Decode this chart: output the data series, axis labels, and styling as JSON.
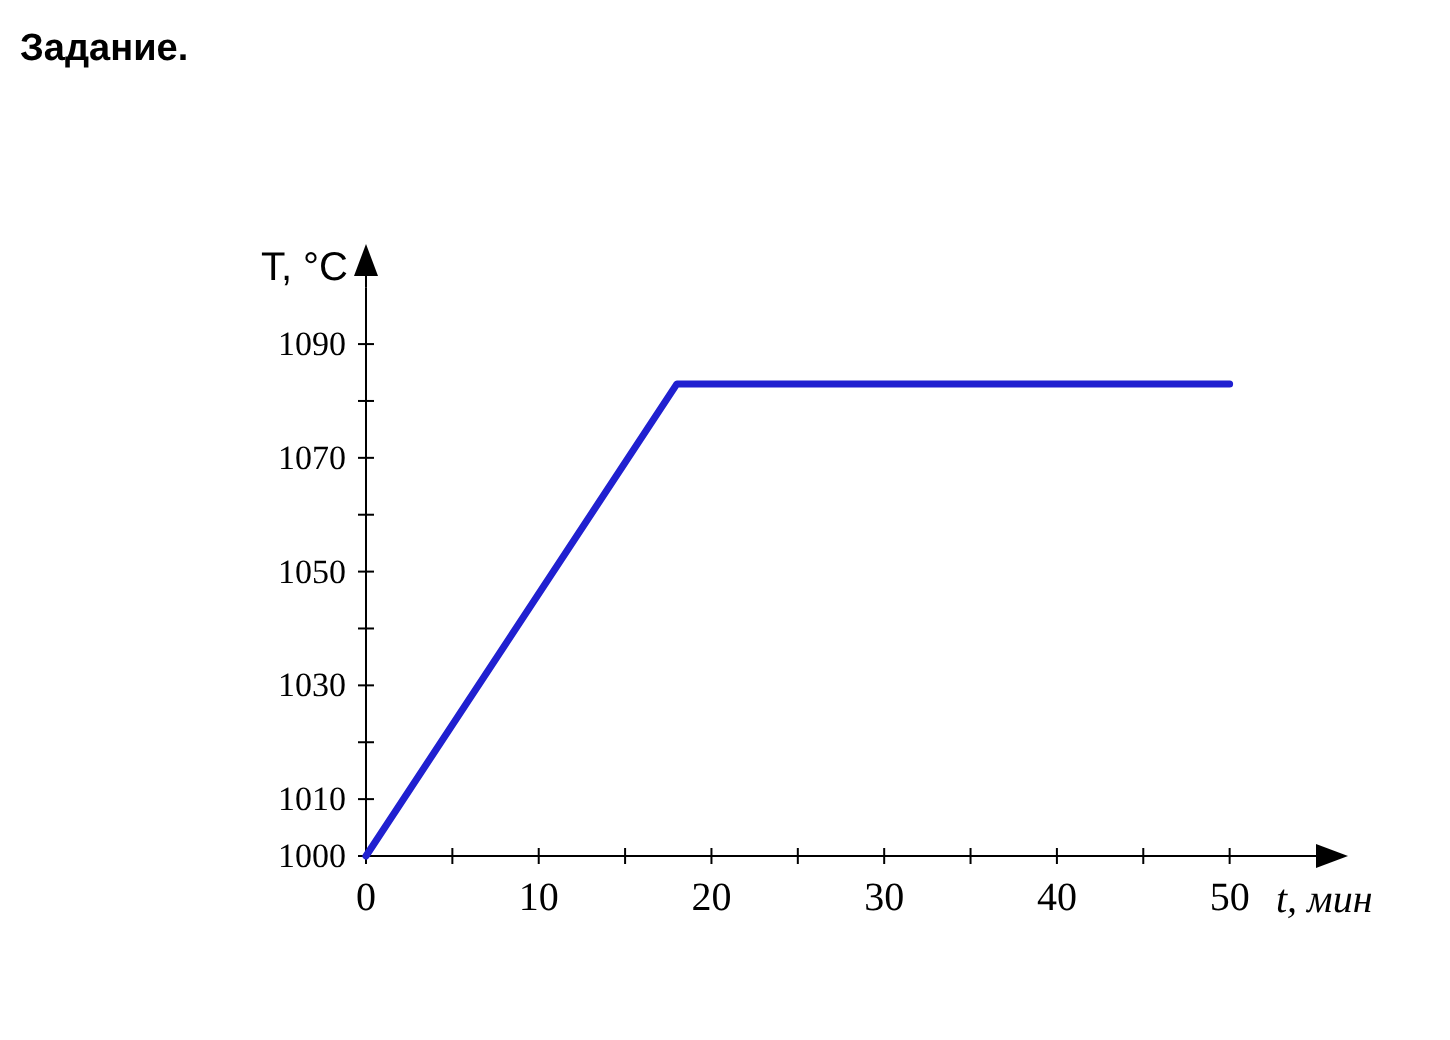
{
  "chart_data": {
    "type": "line",
    "title": "Задание.",
    "xlabel": "t, мин",
    "ylabel": "T, °C",
    "x": [
      0,
      18,
      50
    ],
    "series": [
      {
        "color": "#2020d0",
        "values": [
          1000,
          1083,
          1083
        ]
      }
    ],
    "xlim": [
      0,
      55
    ],
    "ylim": [
      1000,
      1100
    ],
    "xticks": [
      0,
      {
        "value": 5,
        "label": null
      },
      10,
      {
        "value": 15,
        "label": null
      },
      20,
      {
        "value": 25,
        "label": null
      },
      30,
      {
        "value": 35,
        "label": null
      },
      40,
      {
        "value": 45,
        "label": null
      },
      50
    ],
    "yticks": [
      1000,
      1010,
      {
        "value": 1020,
        "label": null
      },
      1030,
      {
        "value": 1040,
        "label": null
      },
      1050,
      {
        "value": 1060,
        "label": null
      },
      1070,
      {
        "value": 1080,
        "label": null
      },
      1090
    ],
    "grid": false,
    "marker": "none",
    "line_style": "solid"
  }
}
